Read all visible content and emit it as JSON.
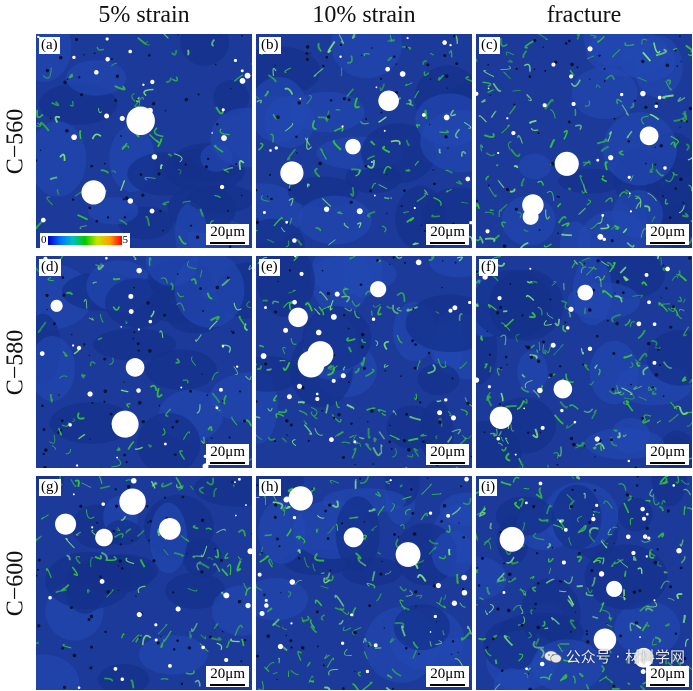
{
  "columns": [
    "5% strain",
    "10% strain",
    "fracture"
  ],
  "rows": [
    "C−560",
    "C−580",
    "C−600"
  ],
  "panels": [
    {
      "tag": "(a)",
      "scale": "20μm",
      "seed": 11
    },
    {
      "tag": "(b)",
      "scale": "20μm",
      "seed": 23
    },
    {
      "tag": "(c)",
      "scale": "20μm",
      "seed": 37
    },
    {
      "tag": "(d)",
      "scale": "20μm",
      "seed": 41
    },
    {
      "tag": "(e)",
      "scale": "20μm",
      "seed": 53
    },
    {
      "tag": "(f)",
      "scale": "20μm",
      "seed": 67
    },
    {
      "tag": "(g)",
      "scale": "20μm",
      "seed": 71
    },
    {
      "tag": "(h)",
      "scale": "20μm",
      "seed": 83
    },
    {
      "tag": "(i)",
      "scale": "20μm",
      "seed": 97
    }
  ],
  "legend": {
    "min": "0",
    "max": "5"
  },
  "watermark": "公众号 · 材料学网",
  "colors": {
    "matrix": "#1b3a9a",
    "boundary": "#35c23a",
    "particle": "#ffffff"
  }
}
